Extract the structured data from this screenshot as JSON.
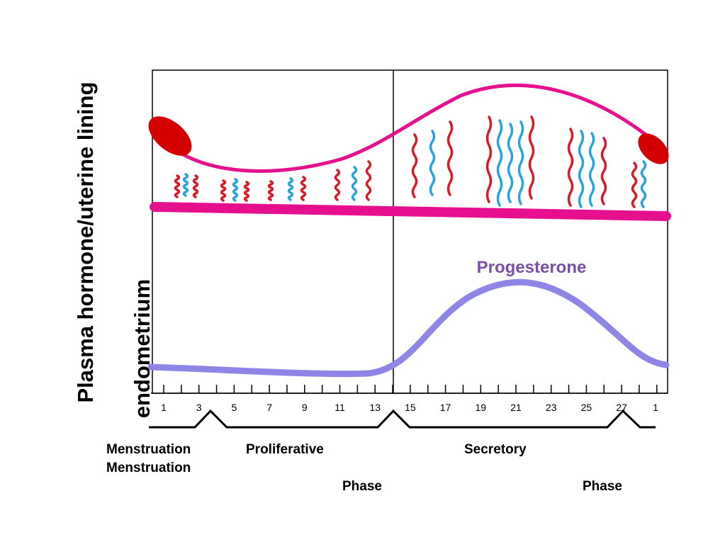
{
  "axis_labels": {
    "outer": "Plasma hormone/uterine lining",
    "inner": "endometrium"
  },
  "curve_label": "Progesterone",
  "day_labels": [
    "1",
    "3",
    "5",
    "7",
    "9",
    "11",
    "13",
    "15",
    "17",
    "19",
    "21",
    "23",
    "25",
    "27",
    "1"
  ],
  "phases": {
    "menstruation_1": "Menstruation",
    "menstruation_2": "Menstruation",
    "proliferative": "Proliferative",
    "secretory": "Secretory",
    "phase_1": "Phase",
    "phase_2": "Phase"
  }
}
